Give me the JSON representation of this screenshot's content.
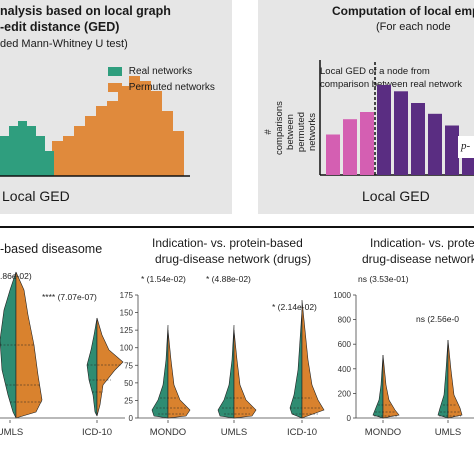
{
  "top_left": {
    "title_line1": "nalysis based on local graph",
    "title_line2": "-edit distance (GED)",
    "subtitle": "ded Mann-Whitney U test)",
    "legend": [
      {
        "label": "Real networks",
        "color": "#2f9e7e"
      },
      {
        "label": "Permuted networks",
        "color": "#e08a3c"
      }
    ],
    "xlabel": "Local GED",
    "real_bins": [
      8,
      10,
      11,
      10,
      8,
      5
    ],
    "perm_bins": [
      1,
      2,
      3,
      5,
      7,
      8,
      10,
      12,
      14,
      15,
      18,
      20,
      19,
      17,
      13,
      9
    ]
  },
  "top_right": {
    "title_line1": "Computation of local empi",
    "title_line2": "(For each node",
    "annotation_line1": "Local GED of a node from",
    "annotation_line2": "comparison between real network",
    "ylabel_line1": "# comparisons",
    "ylabel_line2": "between permuted",
    "ylabel_line3": "networks",
    "xlabel": "Local GED",
    "p_label": "p-",
    "pink_color": "#d45fb2",
    "purple_color": "#5a2d82",
    "bars": [
      {
        "value": 0.45,
        "group": "pink"
      },
      {
        "value": 0.62,
        "group": "pink"
      },
      {
        "value": 0.7,
        "group": "pink"
      },
      {
        "value": 1.0,
        "group": "purple"
      },
      {
        "value": 0.93,
        "group": "purple"
      },
      {
        "value": 0.8,
        "group": "purple"
      },
      {
        "value": 0.68,
        "group": "purple"
      },
      {
        "value": 0.55,
        "group": "purple"
      },
      {
        "value": 0.38,
        "group": "purple"
      }
    ]
  },
  "bottom": {
    "green": "#2f8c72",
    "orange": "#d9822e",
    "panel1": {
      "title_line1": "-based diseasome",
      "annotations": [
        {
          "text": ".86e-02)",
          "anchor": 0
        },
        {
          "text": "**** (7.07e-07)",
          "anchor": 1
        }
      ],
      "xticks": [
        "UMLS",
        "ICD-10"
      ]
    },
    "panel2": {
      "title_line1": "Indication- vs. protein-based",
      "title_line2": "drug-disease network (drugs)",
      "yticks": [
        "0",
        "25",
        "50",
        "75",
        "100",
        "125",
        "150",
        "175"
      ],
      "annotations": [
        {
          "text": "* (1.54e-02)"
        },
        {
          "text": "* (4.88e-02)"
        },
        {
          "text": "* (2.14e-02)"
        }
      ],
      "xticks": [
        "MONDO",
        "UMLS",
        "ICD-10"
      ]
    },
    "panel3": {
      "title_line1": "Indication- vs. prote",
      "title_line2": "drug-disease network",
      "yticks": [
        "0",
        "200",
        "400",
        "600",
        "800",
        "1000"
      ],
      "annotations": [
        {
          "text": "ns (3.53e-01)"
        },
        {
          "text": "ns (2.56e-0"
        }
      ],
      "xticks": [
        "MONDO",
        "UMLS"
      ]
    }
  }
}
